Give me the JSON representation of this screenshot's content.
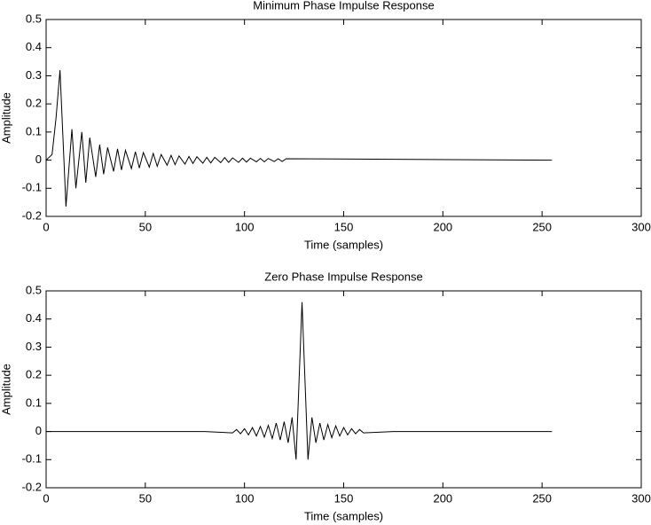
{
  "chart_data": [
    {
      "type": "line",
      "title": "Minimum Phase Impulse Response",
      "xlabel": "Time (samples)",
      "ylabel": "Amplitude",
      "xlim": [
        0,
        300
      ],
      "xticks": [
        0,
        50,
        100,
        150,
        200,
        250,
        300
      ],
      "ylim": [
        -0.2,
        0.5
      ],
      "yticks": [
        -0.2,
        -0.1,
        0,
        0.1,
        0.2,
        0.3,
        0.4,
        0.5
      ],
      "series": [
        {
          "color": "#000000",
          "x": [
            0,
            3,
            5,
            7,
            10,
            13,
            15,
            18,
            20,
            22,
            25,
            27,
            29,
            31,
            34,
            36,
            38,
            40,
            43,
            45,
            47,
            49,
            52,
            54,
            56,
            58,
            61,
            63,
            65,
            67,
            70,
            72,
            74,
            76,
            79,
            81,
            83,
            85,
            88,
            90,
            92,
            94,
            97,
            99,
            101,
            103,
            106,
            108,
            110,
            112,
            115,
            117,
            119,
            121,
            255
          ],
          "values": [
            0,
            0.02,
            0.15,
            0.32,
            -0.165,
            0.11,
            -0.1,
            0.1,
            -0.08,
            0.08,
            -0.06,
            0.055,
            -0.05,
            0.045,
            -0.04,
            0.04,
            -0.035,
            0.035,
            -0.03,
            0.03,
            -0.028,
            0.027,
            -0.025,
            0.024,
            -0.022,
            0.02,
            -0.018,
            0.017,
            -0.016,
            0.015,
            -0.014,
            0.013,
            -0.012,
            0.012,
            -0.011,
            0.01,
            -0.01,
            0.01,
            -0.009,
            0.009,
            -0.008,
            0.008,
            -0.008,
            0.007,
            -0.007,
            0.007,
            -0.006,
            0.006,
            -0.006,
            0.006,
            -0.005,
            0.005,
            -0.005,
            0.005,
            0
          ]
        }
      ]
    },
    {
      "type": "line",
      "title": "Zero Phase Impulse Response",
      "xlabel": "Time (samples)",
      "ylabel": "Amplitude",
      "xlim": [
        0,
        300
      ],
      "xticks": [
        0,
        50,
        100,
        150,
        200,
        250,
        300
      ],
      "ylim": [
        -0.2,
        0.5
      ],
      "yticks": [
        -0.2,
        -0.1,
        0,
        0.1,
        0.2,
        0.3,
        0.4,
        0.5
      ],
      "series": [
        {
          "color": "#000000",
          "x": [
            0,
            80,
            94,
            96,
            98,
            100,
            102,
            104,
            106,
            108,
            110,
            112,
            114,
            116,
            118,
            120,
            122,
            124,
            126,
            129,
            132,
            134,
            136,
            138,
            140,
            142,
            144,
            146,
            148,
            150,
            152,
            154,
            156,
            158,
            160,
            175,
            255
          ],
          "values": [
            0,
            0,
            -0.005,
            0.007,
            -0.008,
            0.01,
            -0.012,
            0.014,
            -0.016,
            0.018,
            -0.02,
            0.022,
            -0.025,
            0.03,
            -0.03,
            0.035,
            -0.04,
            0.05,
            -0.1,
            0.46,
            -0.1,
            0.05,
            -0.04,
            0.03,
            -0.03,
            0.025,
            -0.022,
            0.02,
            -0.016,
            0.014,
            -0.012,
            0.01,
            -0.008,
            0.007,
            -0.005,
            0,
            0
          ]
        }
      ]
    }
  ]
}
